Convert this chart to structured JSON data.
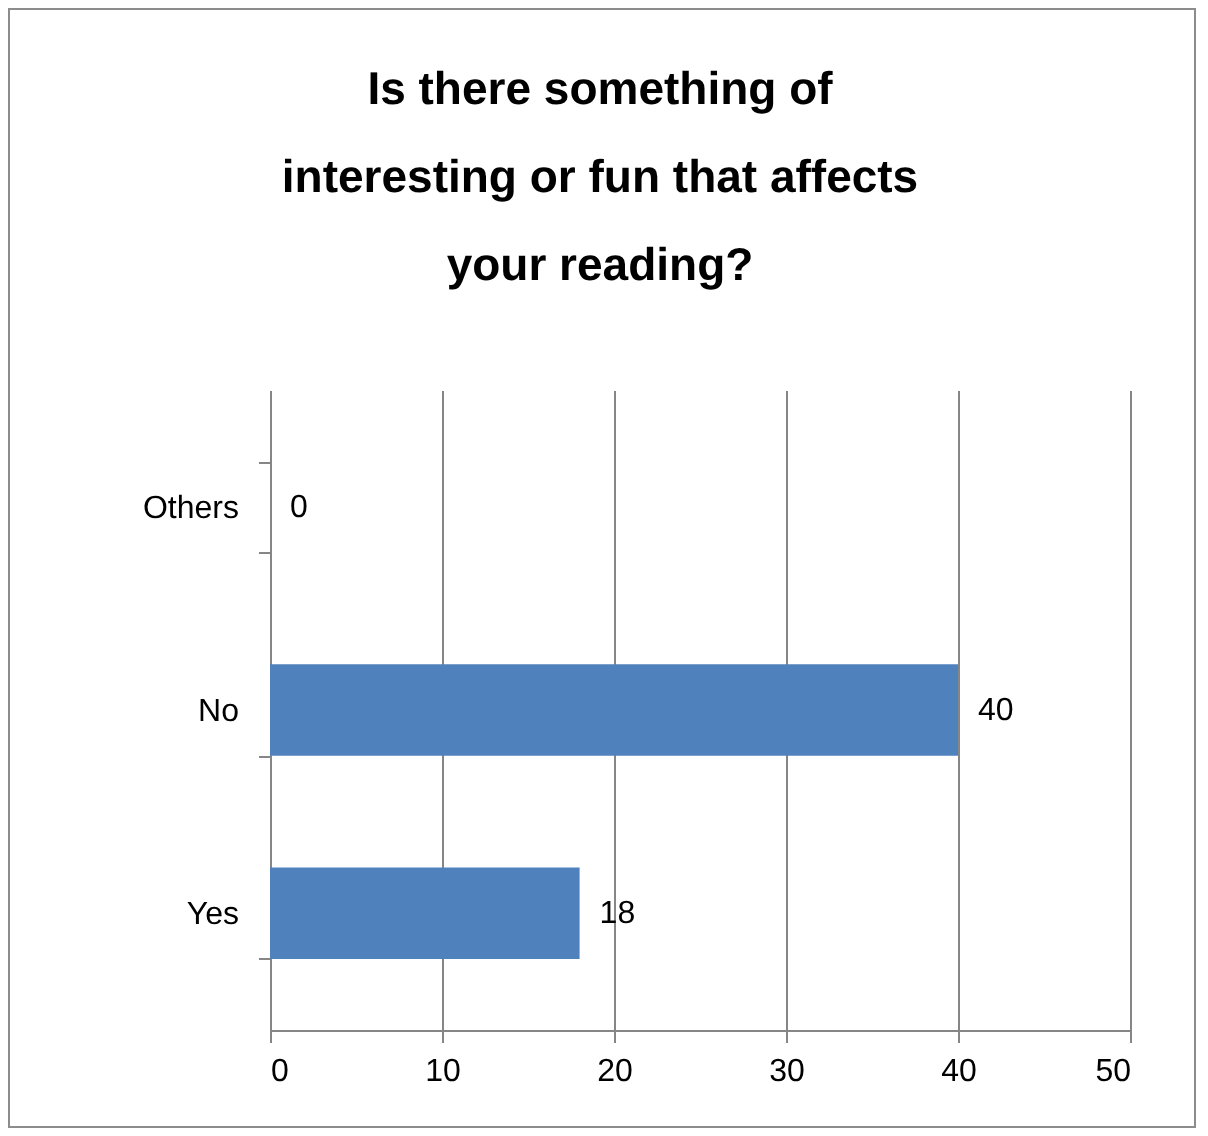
{
  "chart_data": {
    "type": "bar",
    "orientation": "horizontal",
    "title": "Is there something of interesting or fun that affects your reading?",
    "categories": [
      "Others",
      "No",
      "Yes"
    ],
    "values": [
      0,
      40,
      18
    ],
    "color": "#4f81bd",
    "data_labels": true,
    "xlim": [
      0,
      50
    ],
    "xticks": [
      0,
      10,
      20,
      30,
      40,
      50
    ],
    "grid": "x"
  }
}
